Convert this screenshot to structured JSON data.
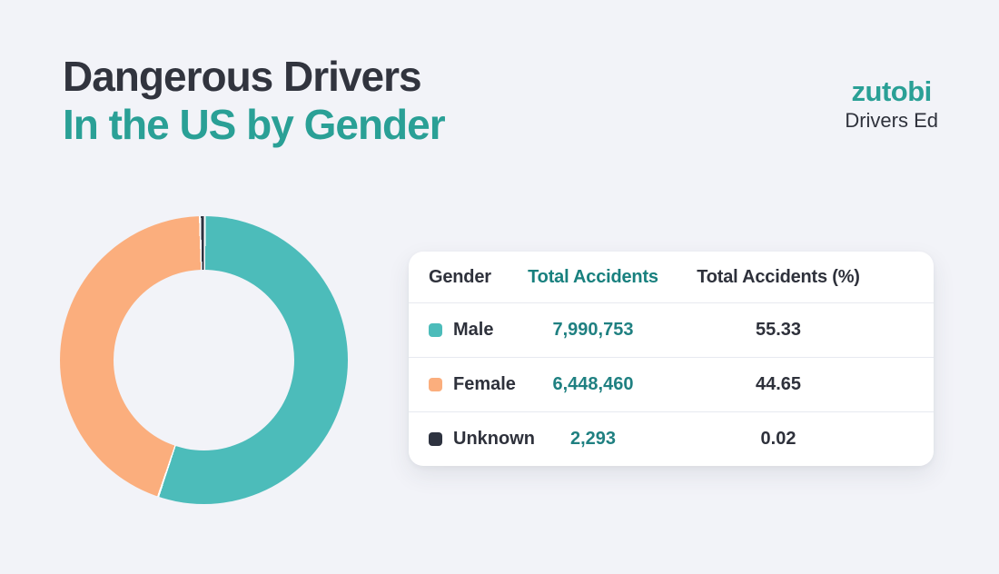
{
  "header": {
    "title_line1": "Dangerous Drivers",
    "title_line2": "In the US by Gender"
  },
  "logo": {
    "brand": "zutobi",
    "subtitle": "Drivers Ed"
  },
  "table": {
    "columns": [
      "Gender",
      "Total Accidents",
      "Total Accidents (%)"
    ],
    "rows": [
      {
        "label": "Male",
        "total": "7,990,753",
        "percent": "55.33",
        "color": "#4CBCBA"
      },
      {
        "label": "Female",
        "total": "6,448,460",
        "percent": "44.65",
        "color": "#FBAE7D"
      },
      {
        "label": "Unknown",
        "total": "2,293",
        "percent": "0.02",
        "color": "#2E3340"
      }
    ]
  },
  "chart_data": {
    "type": "pie",
    "donut": true,
    "title": "Dangerous Drivers In the US by Gender",
    "categories": [
      "Male",
      "Female",
      "Unknown"
    ],
    "values": [
      7990753,
      6448460,
      2293
    ],
    "percentages": [
      55.33,
      44.65,
      0.02
    ],
    "colors": [
      "#4CBCBA",
      "#FBAE7D",
      "#2E3340"
    ],
    "start_angle_deg": 0,
    "direction": "clockwise",
    "legend_position": "table-right"
  },
  "colors": {
    "background": "#F2F3F8",
    "card": "#FFFFFF",
    "accent_teal": "#2AA096",
    "header_teal": "#18807E",
    "number_teal": "#1F8081",
    "dark_text": "#2E313B",
    "divider": "#E7E9F0"
  }
}
